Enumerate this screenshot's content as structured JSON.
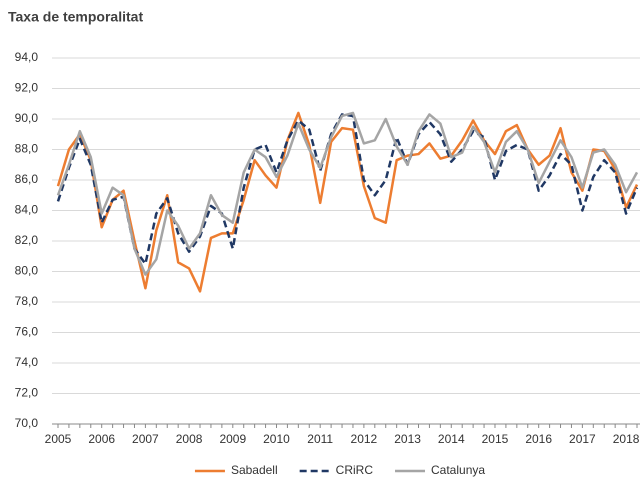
{
  "chart_data": {
    "type": "line",
    "subtitle": "Taxa de temporalitat",
    "categories": [
      "2005",
      null,
      null,
      null,
      "2006",
      null,
      null,
      null,
      "2007",
      null,
      null,
      null,
      "2008",
      null,
      null,
      null,
      "2009",
      null,
      null,
      null,
      "2010",
      null,
      null,
      null,
      "2011",
      null,
      null,
      null,
      "2012",
      null,
      null,
      null,
      "2013",
      null,
      null,
      null,
      "2014",
      null,
      null,
      null,
      "2015",
      null,
      null,
      null,
      "2016",
      null,
      null,
      null,
      "2017",
      null,
      null,
      null,
      "2018",
      null
    ],
    "series": [
      {
        "name": "Sabadell",
        "color": "#ed7d31",
        "dashed": false,
        "values": [
          85.6,
          88.0,
          89.0,
          87.3,
          82.9,
          84.7,
          85.3,
          82.0,
          78.9,
          82.7,
          85.0,
          80.6,
          80.2,
          78.7,
          82.2,
          82.5,
          82.5,
          84.7,
          87.3,
          86.3,
          85.5,
          88.6,
          90.4,
          88.3,
          84.5,
          88.5,
          89.4,
          89.3,
          85.6,
          83.5,
          83.2,
          87.3,
          87.6,
          87.7,
          88.4,
          87.4,
          87.6,
          88.6,
          89.9,
          88.6,
          87.7,
          89.2,
          89.6,
          88.0,
          87.0,
          87.6,
          89.4,
          86.5,
          85.3,
          88.0,
          87.9,
          86.7,
          84.2,
          85.7
        ]
      },
      {
        "name": "CRiRC",
        "color": "#203864",
        "dashed": true,
        "values": [
          84.6,
          86.8,
          88.7,
          87.0,
          83.2,
          84.7,
          84.9,
          81.5,
          80.5,
          83.8,
          84.8,
          82.5,
          81.3,
          82.3,
          84.3,
          83.8,
          81.5,
          85.5,
          88.0,
          88.3,
          86.5,
          88.6,
          89.9,
          89.3,
          86.6,
          89.0,
          90.3,
          90.2,
          86.0,
          85.0,
          86.0,
          88.8,
          87.0,
          89.0,
          89.8,
          89.0,
          87.2,
          88.0,
          89.2,
          88.8,
          86.0,
          87.9,
          88.3,
          88.0,
          85.3,
          86.3,
          87.7,
          87.0,
          84.0,
          86.2,
          87.3,
          86.5,
          83.8,
          85.5
        ]
      },
      {
        "name": "Catalunya",
        "color": "#a5a5a5",
        "dashed": false,
        "values": [
          85.0,
          87.0,
          89.2,
          87.5,
          83.8,
          85.5,
          85.0,
          81.5,
          79.8,
          80.8,
          84.0,
          83.0,
          81.5,
          82.5,
          85.0,
          83.7,
          83.2,
          86.5,
          88.0,
          87.5,
          86.2,
          87.6,
          89.7,
          88.0,
          86.8,
          88.8,
          90.2,
          90.4,
          88.4,
          88.6,
          90.0,
          88.2,
          87.0,
          89.2,
          90.3,
          89.7,
          87.5,
          87.8,
          89.5,
          88.5,
          86.5,
          88.5,
          89.2,
          88.0,
          85.8,
          87.2,
          88.6,
          87.5,
          85.5,
          87.8,
          88.0,
          87.0,
          85.2,
          86.5
        ]
      }
    ],
    "ylim": [
      70,
      94
    ],
    "yticks": [
      {
        "value": 70,
        "label": "70,0"
      },
      {
        "value": 72,
        "label": "72,0"
      },
      {
        "value": 74,
        "label": "74,0"
      },
      {
        "value": 76,
        "label": "76,0"
      },
      {
        "value": 78,
        "label": "78,0"
      },
      {
        "value": 80,
        "label": "80,0"
      },
      {
        "value": 82,
        "label": "82,0"
      },
      {
        "value": 84,
        "label": "84,0"
      },
      {
        "value": 86,
        "label": "86,0"
      },
      {
        "value": 88,
        "label": "88,0"
      },
      {
        "value": 90,
        "label": "90,0"
      },
      {
        "value": 92,
        "label": "92,0"
      },
      {
        "value": 94,
        "label": "94,0"
      }
    ],
    "grid": true,
    "legend": "bottom"
  }
}
